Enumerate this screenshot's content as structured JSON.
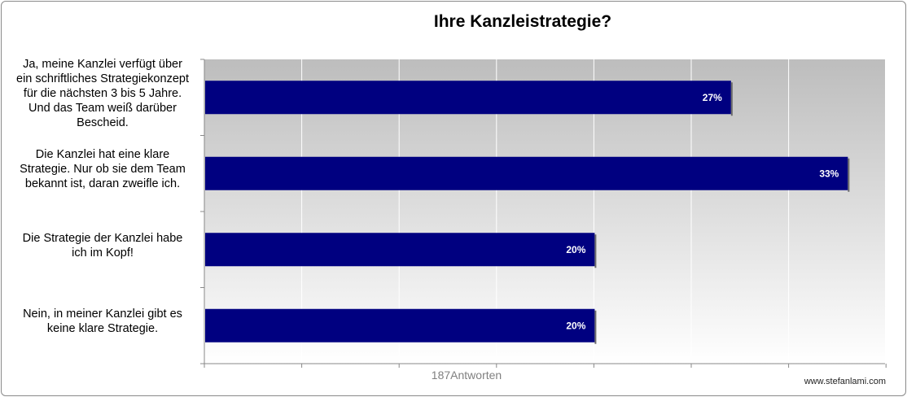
{
  "chart_data": {
    "type": "bar",
    "orientation": "horizontal",
    "title": "Ihre Kanzleistrategie?",
    "categories": [
      "Ja, meine Kanzlei verfügt über ein schriftliches Strategiekonzept für die nächsten 3 bis 5 Jahre. Und das Team weiß darüber Bescheid.",
      "Die Kanzlei hat eine klare Strategie. Nur ob sie dem Team bekannt ist, daran zweifle ich.",
      "Die Strategie der Kanzlei habe ich im Kopf!",
      "Nein, in meiner Kanzlei gibt es keine klare Strategie."
    ],
    "category_lines": [
      [
        "Ja, meine Kanzlei verfügt über",
        "ein schriftliches Strategiekonzept",
        "für die nächsten 3 bis 5 Jahre.",
        "Und das Team weiß darüber",
        "Bescheid."
      ],
      [
        "Die Kanzlei hat eine klare",
        "Strategie. Nur ob sie dem Team",
        "bekannt ist, daran zweifle ich."
      ],
      [
        "Die Strategie der Kanzlei habe",
        "ich im Kopf!"
      ],
      [
        "Nein, in meiner Kanzlei gibt es",
        "keine klare Strategie."
      ]
    ],
    "values": [
      27,
      33,
      20,
      20
    ],
    "data_labels": [
      "27%",
      "33%",
      "20%",
      "20%"
    ],
    "xlabel": "187Antworten",
    "xlim": [
      0,
      36
    ],
    "grid": true,
    "bar_color": "#000080",
    "plot_gradient_top": "#bdbdbd",
    "plot_gradient_bottom": "#ffffff"
  },
  "footer": {
    "credit": "www.stefanlami.com"
  }
}
